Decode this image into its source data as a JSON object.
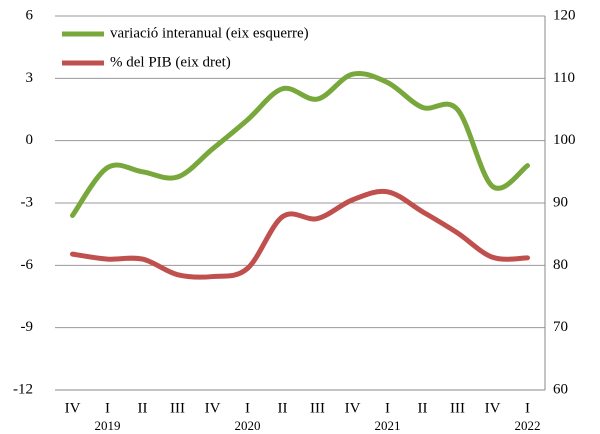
{
  "chart_data": {
    "type": "line",
    "categories": [
      "IV",
      "I",
      "II",
      "III",
      "IV",
      "I",
      "II",
      "III",
      "IV",
      "I",
      "II",
      "III",
      "IV",
      "I"
    ],
    "years": [
      null,
      "2019",
      null,
      null,
      null,
      "2020",
      null,
      null,
      null,
      "2021",
      null,
      null,
      null,
      "2022"
    ],
    "series": [
      {
        "name": "variació interanual (eix esquerre)",
        "color": "#78a83c",
        "axis": "y",
        "values": [
          -3.6,
          -1.3,
          -1.5,
          -1.75,
          -0.4,
          1.0,
          2.5,
          2.0,
          3.2,
          2.8,
          1.6,
          1.5,
          -2.2,
          -1.2
        ]
      },
      {
        "name": "% del PIB (eix dret)",
        "color": "#c0504d",
        "axis": "y2",
        "values": [
          81.8,
          81.0,
          81.0,
          78.5,
          78.2,
          79.5,
          87.8,
          87.5,
          90.5,
          91.8,
          88.6,
          85.2,
          81.3,
          81.2
        ]
      }
    ],
    "ylim": [
      -12,
      6
    ],
    "yticks": [
      -12,
      -9,
      -6,
      -3,
      0,
      3,
      6
    ],
    "y2lim": [
      60,
      120
    ],
    "y2ticks": [
      60,
      70,
      80,
      90,
      100,
      110,
      120
    ],
    "grid": true,
    "legend": "top-left"
  }
}
